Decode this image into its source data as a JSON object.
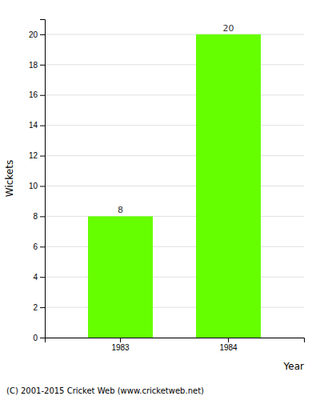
{
  "chart_data": {
    "type": "bar",
    "categories": [
      "1983",
      "1984"
    ],
    "values": [
      8,
      20
    ],
    "color": "#66ff00",
    "xlabel": "Year",
    "ylabel": "Wickets",
    "footer": "(C) 2001-2015 Cricket Web (www.cricketweb.net)",
    "ylim": [
      0,
      21
    ],
    "yticks": [
      0,
      2,
      4,
      6,
      8,
      10,
      12,
      14,
      16,
      18,
      20
    ],
    "grid": true,
    "data_labels": true
  }
}
